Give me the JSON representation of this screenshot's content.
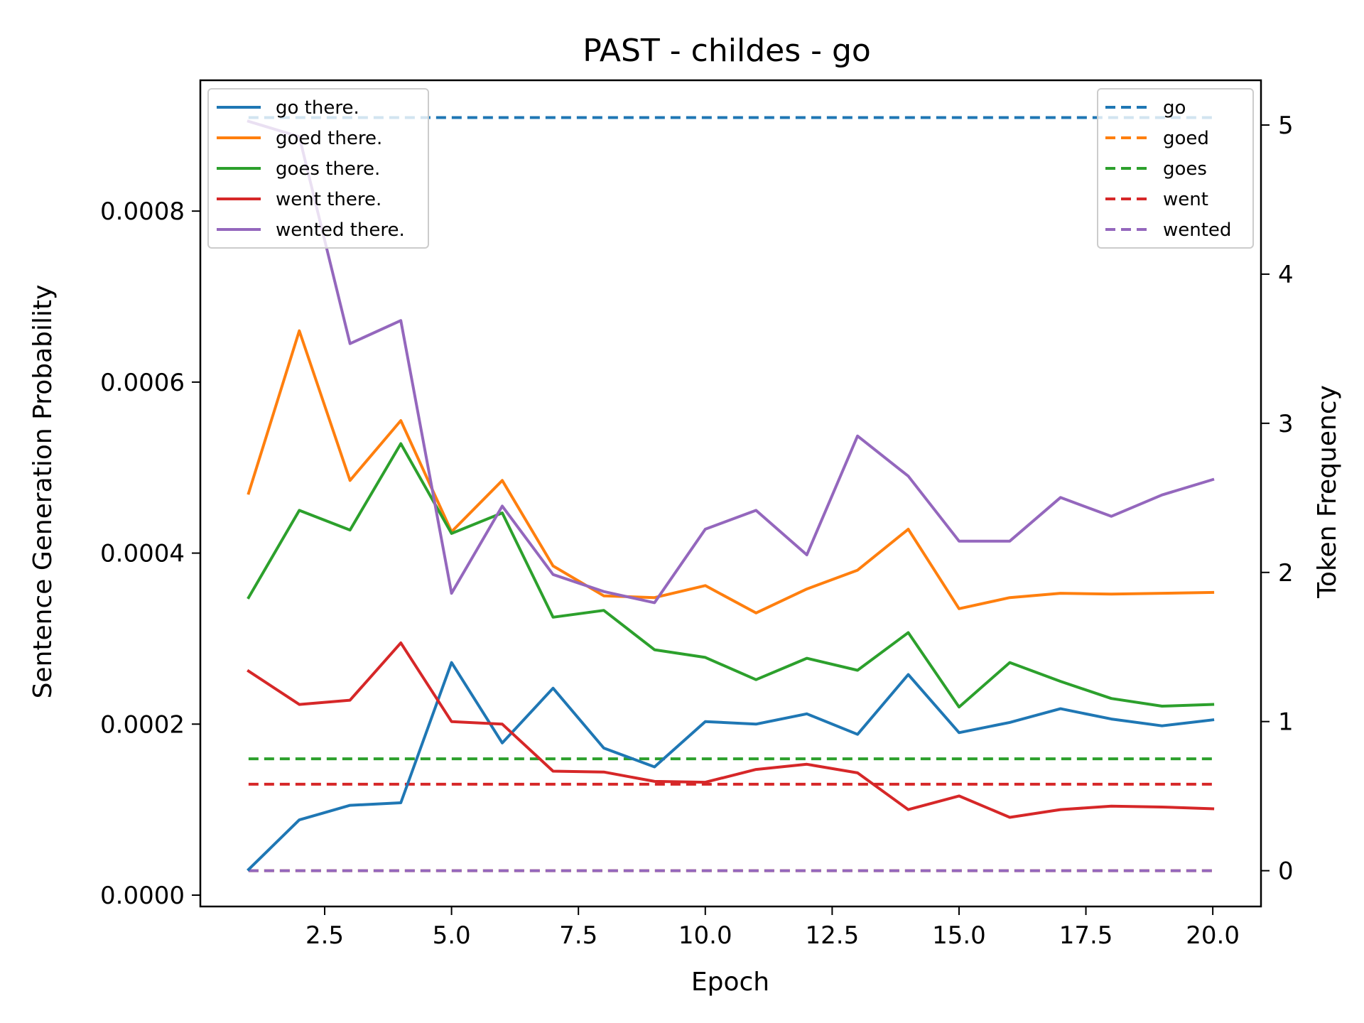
{
  "chart_data": {
    "type": "line",
    "title": "PAST - childes - go",
    "xlabel": "Epoch",
    "ylabel_left": "Sentence Generation Probability",
    "ylabel_right": "Token Frequency",
    "x": [
      1,
      2,
      3,
      4,
      5,
      6,
      7,
      8,
      9,
      10,
      11,
      12,
      13,
      14,
      15,
      16,
      17,
      18,
      19,
      20
    ],
    "xlim": [
      0.05,
      20.95
    ],
    "ylim_left": [
      -1.33e-05,
      0.000953
    ],
    "ylim_right": [
      -0.24,
      5.3
    ],
    "x_ticks": [
      "2.5",
      "5.0",
      "7.5",
      "10.0",
      "12.5",
      "15.0",
      "17.5",
      "20.0"
    ],
    "y_ticks_left": [
      "0.0000",
      "0.0002",
      "0.0004",
      "0.0006",
      "0.0008"
    ],
    "y_ticks_right": [
      "0",
      "1",
      "2",
      "3",
      "4",
      "5"
    ],
    "series_left": [
      {
        "name": "go there.",
        "color": "#1f77b4",
        "values": [
          3e-05,
          8.8e-05,
          0.000105,
          0.000108,
          0.000272,
          0.000178,
          0.000242,
          0.000172,
          0.00015,
          0.000203,
          0.0002,
          0.000212,
          0.000188,
          0.000258,
          0.00019,
          0.000202,
          0.000218,
          0.000206,
          0.000198,
          0.000205
        ]
      },
      {
        "name": "goed there.",
        "color": "#ff7f0e",
        "values": [
          0.00047,
          0.00066,
          0.000485,
          0.000555,
          0.000425,
          0.000485,
          0.000385,
          0.00035,
          0.000348,
          0.000362,
          0.00033,
          0.000358,
          0.00038,
          0.000428,
          0.000335,
          0.000348,
          0.000353,
          0.000352,
          0.000353,
          0.000354
        ]
      },
      {
        "name": "goes there.",
        "color": "#2ca02c",
        "values": [
          0.000348,
          0.00045,
          0.000427,
          0.000528,
          0.000423,
          0.000447,
          0.000325,
          0.000333,
          0.000287,
          0.000278,
          0.000252,
          0.000277,
          0.000263,
          0.000307,
          0.00022,
          0.000272,
          0.00025,
          0.00023,
          0.000221,
          0.000223
        ]
      },
      {
        "name": "went there.",
        "color": "#d62728",
        "values": [
          0.000262,
          0.000223,
          0.000228,
          0.000295,
          0.000203,
          0.0002,
          0.000145,
          0.000144,
          0.000133,
          0.000132,
          0.000147,
          0.000153,
          0.000143,
          0.0001,
          0.000116,
          9.1e-05,
          0.0001,
          0.000104,
          0.000103,
          0.000101
        ]
      },
      {
        "name": "wented there.",
        "color": "#9467bd",
        "values": [
          0.000905,
          0.000887,
          0.000645,
          0.000672,
          0.000353,
          0.000455,
          0.000375,
          0.000355,
          0.000342,
          0.000428,
          0.00045,
          0.000398,
          0.000537,
          0.00049,
          0.000414,
          0.000414,
          0.000465,
          0.000443,
          0.000468,
          0.000486
        ]
      }
    ],
    "series_right": [
      {
        "name": "go",
        "color": "#1f77b4",
        "value": 5.05
      },
      {
        "name": "goed",
        "color": "#ff7f0e",
        "value": 0
      },
      {
        "name": "goes",
        "color": "#2ca02c",
        "value": 0.75
      },
      {
        "name": "went",
        "color": "#d62728",
        "value": 0.58
      },
      {
        "name": "wented",
        "color": "#9467bd",
        "value": 0
      }
    ],
    "legend_left_placement": "upper-left",
    "legend_right_placement": "upper-right",
    "grid": false
  }
}
